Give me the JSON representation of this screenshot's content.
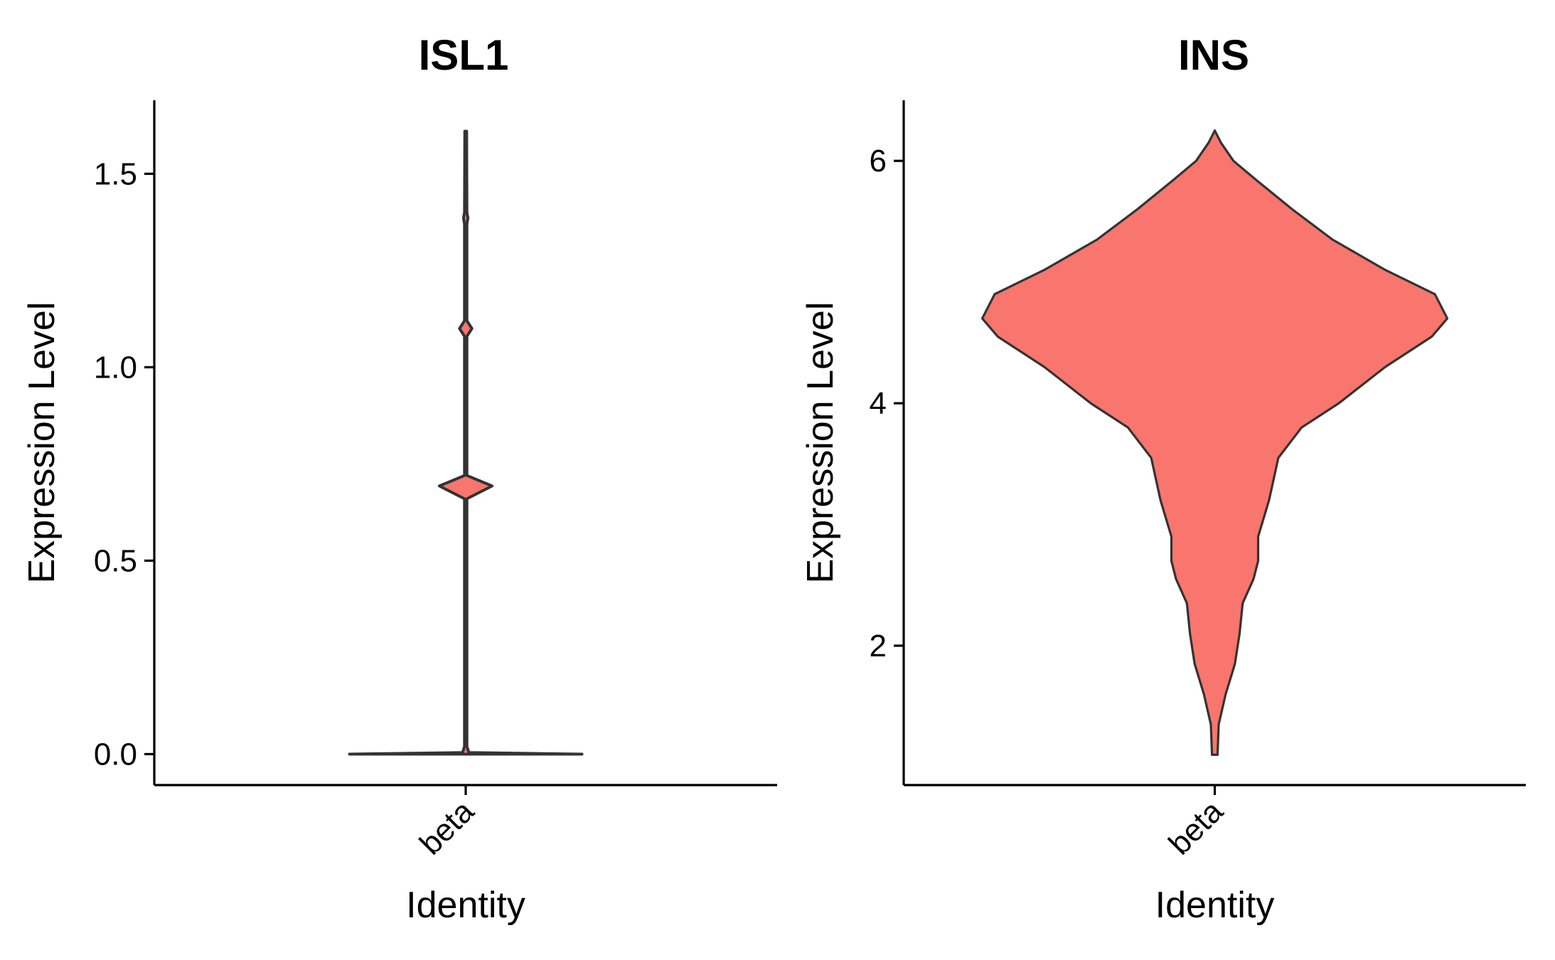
{
  "chart_data": [
    {
      "type": "violin",
      "title": "ISL1",
      "xlabel": "Identity",
      "ylabel": "Expression Level",
      "categories": [
        "beta"
      ],
      "ylim": [
        -0.08,
        1.69
      ],
      "yticks": [
        0.0,
        0.5,
        1.0,
        1.5
      ],
      "ytick_labels": [
        "0.0",
        "0.5",
        "1.0",
        "1.5"
      ],
      "fill_color": "#F8766D",
      "outline_color": "#333333",
      "violin_range": [
        0.0,
        1.61
      ],
      "density_profile": [
        {
          "y": 0.0,
          "width": 0.75
        },
        {
          "y": 0.004,
          "width": 0.02
        },
        {
          "y": 0.02,
          "width": 0.008
        },
        {
          "y": 0.66,
          "width": 0.008
        },
        {
          "y": 0.693,
          "width": 0.17
        },
        {
          "y": 0.72,
          "width": 0.008
        },
        {
          "y": 1.08,
          "width": 0.008
        },
        {
          "y": 1.1,
          "width": 0.04
        },
        {
          "y": 1.12,
          "width": 0.008
        },
        {
          "y": 1.37,
          "width": 0.008
        },
        {
          "y": 1.386,
          "width": 0.014
        },
        {
          "y": 1.4,
          "width": 0.008
        },
        {
          "y": 1.61,
          "width": 0.006
        }
      ]
    },
    {
      "type": "violin",
      "title": "INS",
      "xlabel": "Identity",
      "ylabel": "Expression Level",
      "categories": [
        "beta"
      ],
      "ylim": [
        0.85,
        6.5
      ],
      "yticks": [
        2,
        4,
        6
      ],
      "ytick_labels": [
        "2",
        "4",
        "6"
      ],
      "fill_color": "#F8766D",
      "outline_color": "#333333",
      "violin_range": [
        1.1,
        6.25
      ],
      "density_profile": [
        {
          "y": 1.1,
          "width": 0.018
        },
        {
          "y": 1.35,
          "width": 0.025
        },
        {
          "y": 1.6,
          "width": 0.07
        },
        {
          "y": 1.85,
          "width": 0.13
        },
        {
          "y": 2.1,
          "width": 0.16
        },
        {
          "y": 2.35,
          "width": 0.18
        },
        {
          "y": 2.55,
          "width": 0.25
        },
        {
          "y": 2.7,
          "width": 0.28
        },
        {
          "y": 2.9,
          "width": 0.28
        },
        {
          "y": 3.2,
          "width": 0.35
        },
        {
          "y": 3.55,
          "width": 0.41
        },
        {
          "y": 3.8,
          "width": 0.56
        },
        {
          "y": 4.0,
          "width": 0.8
        },
        {
          "y": 4.3,
          "width": 1.1
        },
        {
          "y": 4.55,
          "width": 1.4
        },
        {
          "y": 4.7,
          "width": 1.5
        },
        {
          "y": 4.9,
          "width": 1.42
        },
        {
          "y": 5.1,
          "width": 1.1
        },
        {
          "y": 5.35,
          "width": 0.76
        },
        {
          "y": 5.6,
          "width": 0.5
        },
        {
          "y": 5.85,
          "width": 0.26
        },
        {
          "y": 6.0,
          "width": 0.12
        },
        {
          "y": 6.15,
          "width": 0.04
        },
        {
          "y": 6.25,
          "width": 0.0
        }
      ]
    }
  ]
}
